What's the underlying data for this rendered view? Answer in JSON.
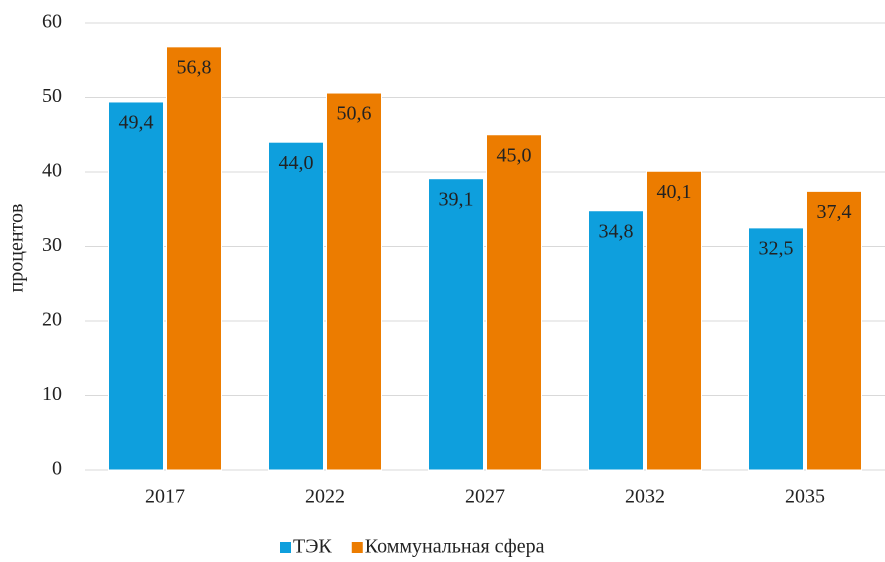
{
  "chart_data": {
    "type": "bar",
    "y_label": "процентов",
    "categories": [
      "2017",
      "2022",
      "2027",
      "2032",
      "2035"
    ],
    "series": [
      {
        "name": "ТЭК",
        "color": "#0e9fdd",
        "values": [
          49.4,
          44.0,
          39.1,
          34.8,
          32.5
        ],
        "value_labels": [
          "49,4",
          "44,0",
          "39,1",
          "34,8",
          "32,5"
        ]
      },
      {
        "name": "Коммунальная сфера",
        "color": "#ec7c00",
        "values": [
          56.8,
          50.6,
          45.0,
          40.1,
          37.4
        ],
        "value_labels": [
          "56,8",
          "50,6",
          "45,0",
          "40,1",
          "37,4"
        ]
      }
    ],
    "ylim": [
      0,
      60
    ],
    "yticks": [
      0,
      10,
      20,
      30,
      40,
      50,
      60
    ],
    "grid": true,
    "legend": "bottom"
  }
}
